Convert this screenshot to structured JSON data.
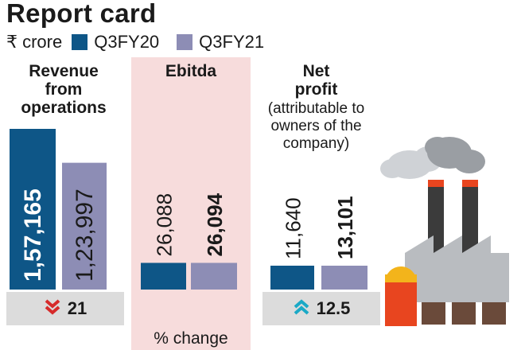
{
  "title": "Report card",
  "legend": {
    "unit": "₹ crore",
    "items": [
      {
        "label": "Q3FY20",
        "color": "#0e5687"
      },
      {
        "label": "Q3FY21",
        "color": "#8d8db5"
      }
    ]
  },
  "panels": [
    {
      "header": "Revenue from operations",
      "subheader": "",
      "change": "21",
      "direction": "down",
      "arrow_color": "#d62b2b"
    },
    {
      "header": "Ebitda",
      "subheader": "",
      "change": "",
      "direction": "",
      "arrow_color": ""
    },
    {
      "header": "Net profit",
      "subheader": "(attributable to owners of the company)",
      "change": "12.5",
      "direction": "up",
      "arrow_color": "#1aa9c6"
    }
  ],
  "change_label": "% change",
  "chart_data": {
    "type": "bar",
    "categories": [
      "Revenue from operations",
      "Ebitda",
      "Net profit (attributable to owners of the company)"
    ],
    "series": [
      {
        "name": "Q3FY20",
        "values": [
          157165,
          26088,
          11640
        ],
        "labels": [
          "1,57,165",
          "26,088",
          "11,640"
        ]
      },
      {
        "name": "Q3FY21",
        "values": [
          123997,
          26094,
          13101
        ],
        "labels": [
          "1,23,997",
          "26,094",
          "13,101"
        ]
      }
    ],
    "percent_change": [
      -21,
      null,
      12.5
    ],
    "unit": "₹ crore"
  }
}
